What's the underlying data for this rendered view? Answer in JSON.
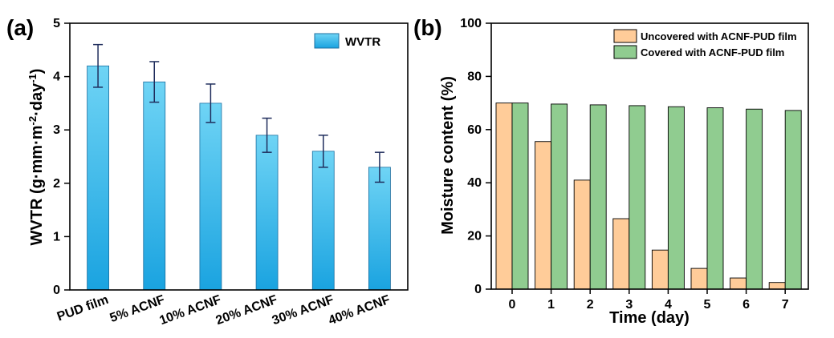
{
  "chart_data": [
    {
      "panel_label": "(a)",
      "type": "bar",
      "categories": [
        "PUD film",
        "5% ACNF",
        "10% ACNF",
        "20% ACNF",
        "30% ACNF",
        "40% ACNF"
      ],
      "series": [
        {
          "name": "WVTR",
          "values": [
            4.2,
            3.9,
            3.5,
            2.9,
            2.6,
            2.3
          ],
          "errors": [
            0.4,
            0.38,
            0.36,
            0.32,
            0.3,
            0.28
          ]
        }
      ],
      "ylabel_parts": [
        "WVTR (g·mm·m",
        "-2",
        "·day",
        "-1",
        ")"
      ],
      "xlabel": "",
      "ylim": [
        0,
        5
      ],
      "yticks": [
        "0",
        "1",
        "2",
        "3",
        "4",
        "5"
      ],
      "legend_position": "top-right",
      "colors": {
        "bar_top": "#6fd4f5",
        "bar_bottom": "#1aa3e0",
        "bar_stroke": "#1b6fa0",
        "error": "#1f2d5c"
      }
    },
    {
      "panel_label": "(b)",
      "type": "bar",
      "categories": [
        "0",
        "1",
        "2",
        "3",
        "4",
        "5",
        "6",
        "7"
      ],
      "series": [
        {
          "name": "Uncovered with ACNF-PUD film",
          "values": [
            70,
            55.5,
            41,
            26.5,
            14.7,
            7.8,
            4.2,
            2.5
          ],
          "color": "#ffcc99"
        },
        {
          "name": "Covered with ACNF-PUD film",
          "values": [
            70,
            69.6,
            69.3,
            69,
            68.6,
            68.2,
            67.7,
            67.2
          ],
          "color": "#90cc90"
        }
      ],
      "xlabel": "Time (day)",
      "ylabel": "Moisture content (%)",
      "ylim": [
        0,
        100
      ],
      "yticks": [
        "0",
        "20",
        "40",
        "60",
        "80",
        "100"
      ],
      "legend_position": "top-right"
    }
  ]
}
